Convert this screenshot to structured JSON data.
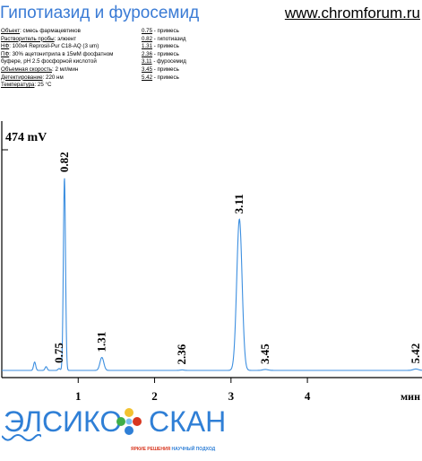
{
  "page": {
    "title": "Гипотиазид и фуросемид",
    "site": "www.chromforum.ru"
  },
  "params": [
    {
      "key": "Объект",
      "value": ": смесь фармацевтиков"
    },
    {
      "key": "Растворитель пробы",
      "value": ": элюент"
    },
    {
      "key": "НФ",
      "value": ": 100x4 Reprosil-Pur C18-AQ  (3 um)"
    },
    {
      "key": "ПФ",
      "value": ": 30% ацетонитрила в 15мМ фосфатном"
    },
    {
      "key": "",
      "value": "буфере, pH 2.5 фосфорной кислотой"
    },
    {
      "key": "Объемная скорость",
      "value": ": 2 мл/мин"
    },
    {
      "key": "Детектирование",
      "value": ": 220 нм"
    },
    {
      "key": "Температура",
      "value": ": 25 °C"
    }
  ],
  "peak_list": [
    {
      "rt": "0.75",
      "label": " - примесь"
    },
    {
      "rt": "0.82",
      "label": " - гипотиазид"
    },
    {
      "rt": "1.31",
      "label": " - примесь"
    },
    {
      "rt": "2.36",
      "label": " - примесь"
    },
    {
      "rt": "3.11",
      "label": " - фуросемид"
    },
    {
      "rt": "3.45",
      "label": " - примесь"
    },
    {
      "rt": "5.42",
      "label": " - примесь"
    }
  ],
  "logo": {
    "part1": "ЭЛСИКО",
    "part2": "СКАН",
    "tag_a": "ЯРКИЕ РЕШЕНИЯ",
    "tag_b": "НАУЧНЫЙ ПОДХОД"
  },
  "colors": {
    "trace": "#3d8fe0",
    "title": "#3a7bd5",
    "logo_blue": "#2f7fd6",
    "logo_red": "#d8361f"
  },
  "chart_data": {
    "type": "line",
    "ylabel": "474 mV",
    "xlabel": "мин",
    "x_ticks": [
      1,
      2,
      3,
      4
    ],
    "xlim": [
      0,
      5.5
    ],
    "ylim": [
      0,
      474
    ],
    "peaks": [
      {
        "label": "0.75",
        "x": 0.75,
        "height": 4
      },
      {
        "label": "0.82",
        "x": 0.82,
        "height": 414
      },
      {
        "label": "1.31",
        "x": 1.31,
        "height": 28
      },
      {
        "label": "2.36",
        "x": 2.36,
        "height": 1
      },
      {
        "label": "3.11",
        "x": 3.11,
        "height": 325
      },
      {
        "label": "3.45",
        "x": 3.45,
        "height": 2
      },
      {
        "label": "5.42",
        "x": 5.42,
        "height": 3
      }
    ],
    "unlabeled_peaks": [
      {
        "x": 0.43,
        "height": 18
      },
      {
        "x": 0.58,
        "height": 8
      }
    ]
  }
}
